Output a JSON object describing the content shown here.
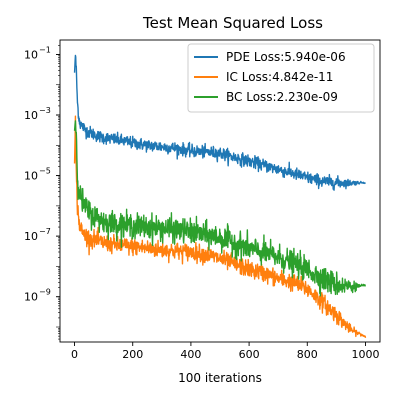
{
  "chart_data": {
    "type": "line",
    "title": "Test Mean Squared Loss",
    "xlabel": "100 iterations",
    "ylabel": "",
    "yscale": "log",
    "xlim": [
      -50,
      1050
    ],
    "ylim": [
      3.2e-11,
      0.3
    ],
    "grid": false,
    "legend_position": "top-right",
    "x_ticks": [
      {
        "value": 0,
        "label": "0"
      },
      {
        "value": 200,
        "label": "200"
      },
      {
        "value": 400,
        "label": "400"
      },
      {
        "value": 600,
        "label": "600"
      },
      {
        "value": 800,
        "label": "800"
      },
      {
        "value": 1000,
        "label": "1000"
      }
    ],
    "y_ticks": [
      {
        "value": 0.1,
        "base": "10",
        "exp": "−1"
      },
      {
        "value": 0.001,
        "base": "10",
        "exp": "−3"
      },
      {
        "value": 1e-05,
        "base": "10",
        "exp": "−5"
      },
      {
        "value": 1e-07,
        "base": "10",
        "exp": "−7"
      },
      {
        "value": 1e-09,
        "base": "10",
        "exp": "−9"
      }
    ],
    "series": [
      {
        "name": "PDE Loss:5.940e-06",
        "color": "#1f77b4",
        "noise_db": 0.1,
        "x": [
          0,
          3,
          6,
          10,
          15,
          20,
          30,
          40,
          60,
          80,
          100,
          150,
          200,
          250,
          300,
          350,
          400,
          450,
          500,
          550,
          600,
          650,
          700,
          750,
          800,
          850,
          900,
          950,
          1000
        ],
        "y": [
          0.025,
          0.1,
          0.03,
          0.0025,
          0.0008,
          0.0005,
          0.0004,
          0.0003,
          0.00025,
          0.0002,
          0.00018,
          0.00015,
          0.00012,
          0.0001,
          9e-05,
          8e-05,
          6.5e-05,
          6e-05,
          5.5e-05,
          4e-05,
          3e-05,
          2.2e-05,
          1.6e-05,
          1.2e-05,
          8.5e-06,
          6.5e-06,
          5.8e-06,
          5.7e-06,
          5.94e-06
        ]
      },
      {
        "name": "IC Loss:4.842e-11",
        "color": "#ff7f0e",
        "noise_db": 0.14,
        "x": [
          0,
          3,
          6,
          10,
          15,
          20,
          30,
          40,
          60,
          80,
          100,
          150,
          200,
          250,
          300,
          350,
          400,
          450,
          500,
          550,
          600,
          650,
          700,
          750,
          800,
          850,
          900,
          950,
          1000
        ],
        "y": [
          2.5e-05,
          0.0006,
          1e-05,
          1e-06,
          3e-07,
          2e-07,
          1.2e-07,
          1e-07,
          8e-08,
          7e-08,
          6e-08,
          5e-08,
          4.5e-08,
          4e-08,
          3.5e-08,
          3.2e-08,
          3e-08,
          2.5e-08,
          1.8e-08,
          1.2e-08,
          8e-09,
          6e-09,
          4e-09,
          3e-09,
          1.8e-09,
          7e-10,
          2.5e-10,
          8e-11,
          4.842e-11
        ]
      },
      {
        "name": "BC Loss:2.230e-09",
        "color": "#2ca02c",
        "noise_db": 0.2,
        "x": [
          0,
          3,
          6,
          10,
          15,
          20,
          30,
          40,
          60,
          80,
          100,
          150,
          200,
          250,
          300,
          350,
          400,
          450,
          500,
          550,
          600,
          650,
          700,
          750,
          800,
          850,
          900,
          950,
          1000
        ],
        "y": [
          0.0003,
          0.0007,
          0.0002,
          1e-05,
          4e-06,
          2e-06,
          1.2e-06,
          8e-07,
          5e-07,
          4e-07,
          3e-07,
          2.5e-07,
          2.2e-07,
          2e-07,
          1.8e-07,
          1.6e-07,
          1.4e-07,
          1.1e-07,
          9e-08,
          6e-08,
          4e-08,
          2.8e-08,
          2e-08,
          1.3e-08,
          8e-09,
          4e-09,
          2.5e-09,
          2.2e-09,
          2.23e-09
        ]
      }
    ]
  }
}
